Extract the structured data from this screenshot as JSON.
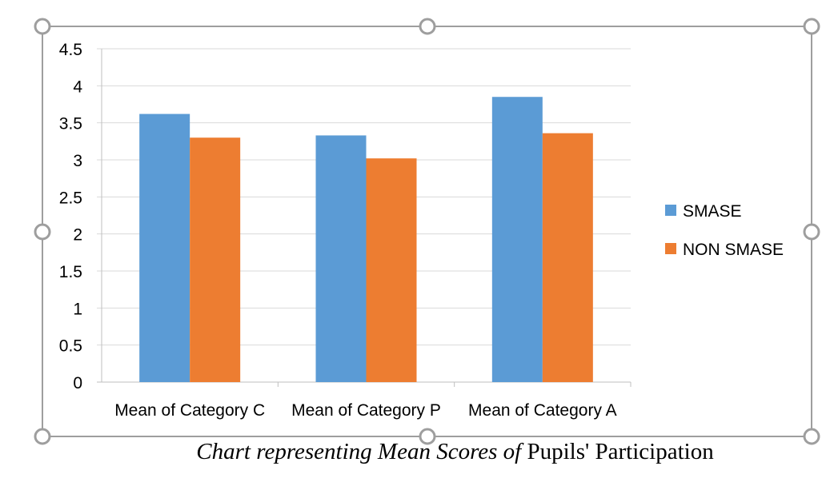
{
  "caption": {
    "italic": "Chart representing Mean Scores of",
    "normal": "Pupils' Participation"
  },
  "colors": {
    "smase": "#5b9bd5",
    "non_smase": "#ed7d31",
    "grid": "#d9d9d9",
    "axis": "#bfbfbf",
    "frame": "#9e9e9e"
  },
  "chart_data": {
    "type": "bar",
    "categories": [
      "Mean of Category C",
      "Mean of Category P",
      "Mean of Category A"
    ],
    "series": [
      {
        "name": "SMASE",
        "values": [
          3.62,
          3.33,
          3.85
        ]
      },
      {
        "name": "NON SMASE",
        "values": [
          3.3,
          3.02,
          3.36
        ]
      }
    ],
    "ylim": [
      0,
      4.5
    ],
    "yticks": [
      "0",
      "0.5",
      "1",
      "1.5",
      "2",
      "2.5",
      "3",
      "3.5",
      "4",
      "4.5"
    ],
    "ytick_values": [
      0,
      0.5,
      1,
      1.5,
      2,
      2.5,
      3,
      3.5,
      4,
      4.5
    ],
    "grid": true,
    "legend": "right"
  }
}
